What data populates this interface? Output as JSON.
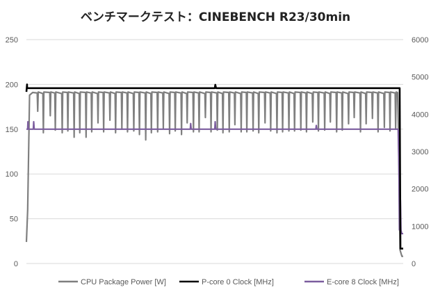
{
  "chart_data": {
    "type": "line",
    "title": "ベンチマークテスト：CINEBENCH R23/30min",
    "xlabel": "",
    "ylabel": "",
    "grid": true,
    "legend_position": "bottom",
    "y_left": {
      "ylim": [
        0,
        250
      ],
      "ticks": [
        "0",
        "50",
        "100",
        "150",
        "200",
        "250"
      ]
    },
    "y_right": {
      "ylim": [
        0,
        6000
      ],
      "ticks": [
        "0",
        "1000",
        "2000",
        "3000",
        "4000",
        "5000",
        "6000"
      ]
    },
    "x_range": [
      0,
      30
    ],
    "series": [
      {
        "name": "CPU Package Power [W]",
        "axis": "left",
        "color": "#7f7f7f",
        "baseline_level": 191,
        "values": [
          [
            0,
            24
          ],
          [
            0.1,
            60
          ],
          [
            0.25,
            188
          ],
          [
            0.5,
            191
          ],
          [
            29.55,
            191
          ],
          [
            29.62,
            150
          ],
          [
            29.75,
            15
          ],
          [
            29.9,
            8
          ],
          [
            30,
            8
          ]
        ],
        "dips": [
          {
            "x": 0.9,
            "y": 170
          },
          {
            "x": 1.35,
            "y": 146
          },
          {
            "x": 1.9,
            "y": 165
          },
          {
            "x": 2.3,
            "y": 149
          },
          {
            "x": 2.85,
            "y": 146
          },
          {
            "x": 3.3,
            "y": 148
          },
          {
            "x": 3.8,
            "y": 141
          },
          {
            "x": 4.25,
            "y": 146
          },
          {
            "x": 4.75,
            "y": 141
          },
          {
            "x": 5.2,
            "y": 147
          },
          {
            "x": 5.7,
            "y": 157
          },
          {
            "x": 6.15,
            "y": 147
          },
          {
            "x": 6.65,
            "y": 160
          },
          {
            "x": 7.1,
            "y": 146
          },
          {
            "x": 7.6,
            "y": 150
          },
          {
            "x": 8.05,
            "y": 147
          },
          {
            "x": 8.55,
            "y": 148
          },
          {
            "x": 9.0,
            "y": 144
          },
          {
            "x": 9.5,
            "y": 138
          },
          {
            "x": 9.95,
            "y": 146
          },
          {
            "x": 10.45,
            "y": 147
          },
          {
            "x": 10.9,
            "y": 151
          },
          {
            "x": 11.4,
            "y": 145
          },
          {
            "x": 11.85,
            "y": 148
          },
          {
            "x": 12.35,
            "y": 144
          },
          {
            "x": 12.8,
            "y": 157
          },
          {
            "x": 13.3,
            "y": 147
          },
          {
            "x": 13.75,
            "y": 147
          },
          {
            "x": 14.25,
            "y": 163
          },
          {
            "x": 14.7,
            "y": 147
          },
          {
            "x": 15.2,
            "y": 149
          },
          {
            "x": 15.65,
            "y": 146
          },
          {
            "x": 16.15,
            "y": 147
          },
          {
            "x": 16.6,
            "y": 155
          },
          {
            "x": 17.1,
            "y": 147
          },
          {
            "x": 17.55,
            "y": 147
          },
          {
            "x": 18.05,
            "y": 148
          },
          {
            "x": 18.5,
            "y": 146
          },
          {
            "x": 19.0,
            "y": 157
          },
          {
            "x": 19.45,
            "y": 148
          },
          {
            "x": 19.95,
            "y": 146
          },
          {
            "x": 20.4,
            "y": 147
          },
          {
            "x": 20.9,
            "y": 148
          },
          {
            "x": 21.35,
            "y": 148
          },
          {
            "x": 21.85,
            "y": 149
          },
          {
            "x": 22.3,
            "y": 147
          },
          {
            "x": 22.8,
            "y": 158
          },
          {
            "x": 23.25,
            "y": 148
          },
          {
            "x": 23.75,
            "y": 149
          },
          {
            "x": 24.2,
            "y": 158
          },
          {
            "x": 24.7,
            "y": 147
          },
          {
            "x": 25.15,
            "y": 149
          },
          {
            "x": 25.65,
            "y": 156
          },
          {
            "x": 26.1,
            "y": 163
          },
          {
            "x": 26.6,
            "y": 147
          },
          {
            "x": 27.05,
            "y": 156
          },
          {
            "x": 27.55,
            "y": 162
          },
          {
            "x": 28.0,
            "y": 147
          },
          {
            "x": 28.5,
            "y": 152
          },
          {
            "x": 28.95,
            "y": 148
          },
          {
            "x": 29.4,
            "y": 150
          }
        ]
      },
      {
        "name": "P-core 0 Clock [MHz]",
        "axis": "right",
        "color": "#000000",
        "values": [
          [
            0,
            4600
          ],
          [
            0.05,
            4800
          ],
          [
            0.06,
            4700
          ],
          [
            15,
            4700
          ],
          [
            15.04,
            4790
          ],
          [
            15.1,
            4700
          ],
          [
            29.72,
            4700
          ],
          [
            29.78,
            400
          ],
          [
            30,
            400
          ]
        ]
      },
      {
        "name": "E-core 8 Clock [MHz]",
        "axis": "right",
        "color": "#7b5c9e",
        "values": [
          [
            0,
            3600
          ],
          [
            0.1,
            3600
          ],
          [
            0.12,
            3800
          ],
          [
            0.16,
            3600
          ],
          [
            0.55,
            3600
          ],
          [
            0.58,
            3800
          ],
          [
            0.62,
            3600
          ],
          [
            13.05,
            3600
          ],
          [
            13.08,
            3750
          ],
          [
            13.12,
            3600
          ],
          [
            15.0,
            3600
          ],
          [
            15.03,
            3800
          ],
          [
            15.07,
            3600
          ],
          [
            23.05,
            3600
          ],
          [
            23.08,
            3700
          ],
          [
            23.12,
            3600
          ],
          [
            29.6,
            3600
          ],
          [
            29.66,
            2600
          ],
          [
            29.7,
            900
          ],
          [
            29.74,
            1100
          ],
          [
            29.78,
            1700
          ],
          [
            29.82,
            900
          ],
          [
            29.88,
            800
          ],
          [
            30,
            800
          ]
        ]
      }
    ]
  }
}
